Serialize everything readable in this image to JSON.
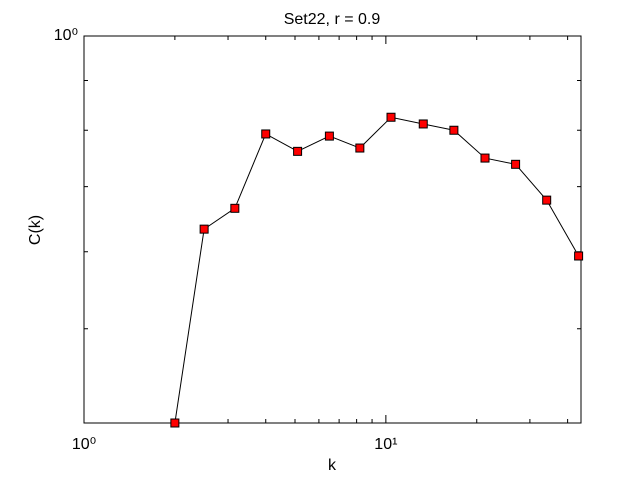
{
  "chart_data": {
    "type": "line",
    "title": "Set22, r = 0.9",
    "x_label": "k",
    "y_label": "C(k)",
    "x": [
      2.0,
      2.5,
      3.16,
      4.0,
      5.1,
      6.5,
      8.2,
      10.4,
      13.3,
      16.8,
      21.3,
      26.9,
      34.1,
      43.5
    ],
    "series": [
      {
        "color": "#ff0000",
        "values": [
          0.4,
          0.633,
          0.665,
          0.793,
          0.761,
          0.789,
          0.767,
          0.825,
          0.812,
          0.8,
          0.749,
          0.738,
          0.678,
          0.594
        ]
      }
    ],
    "xlim": [
      1,
      44.3
    ],
    "ylim": [
      0.4,
      1
    ],
    "xlog": true,
    "ylog": true,
    "xticks": [
      {
        "value": 1,
        "label": "10⁰"
      },
      {
        "value": 10,
        "label": "10¹"
      }
    ],
    "yticks": [
      {
        "value": 1,
        "label": "10⁰"
      }
    ],
    "xminorticks": [
      2,
      3,
      4,
      5,
      6,
      7,
      8,
      9,
      20,
      30,
      40
    ],
    "yminorticks": [
      0.5,
      0.6,
      0.7,
      0.8,
      0.9
    ]
  }
}
